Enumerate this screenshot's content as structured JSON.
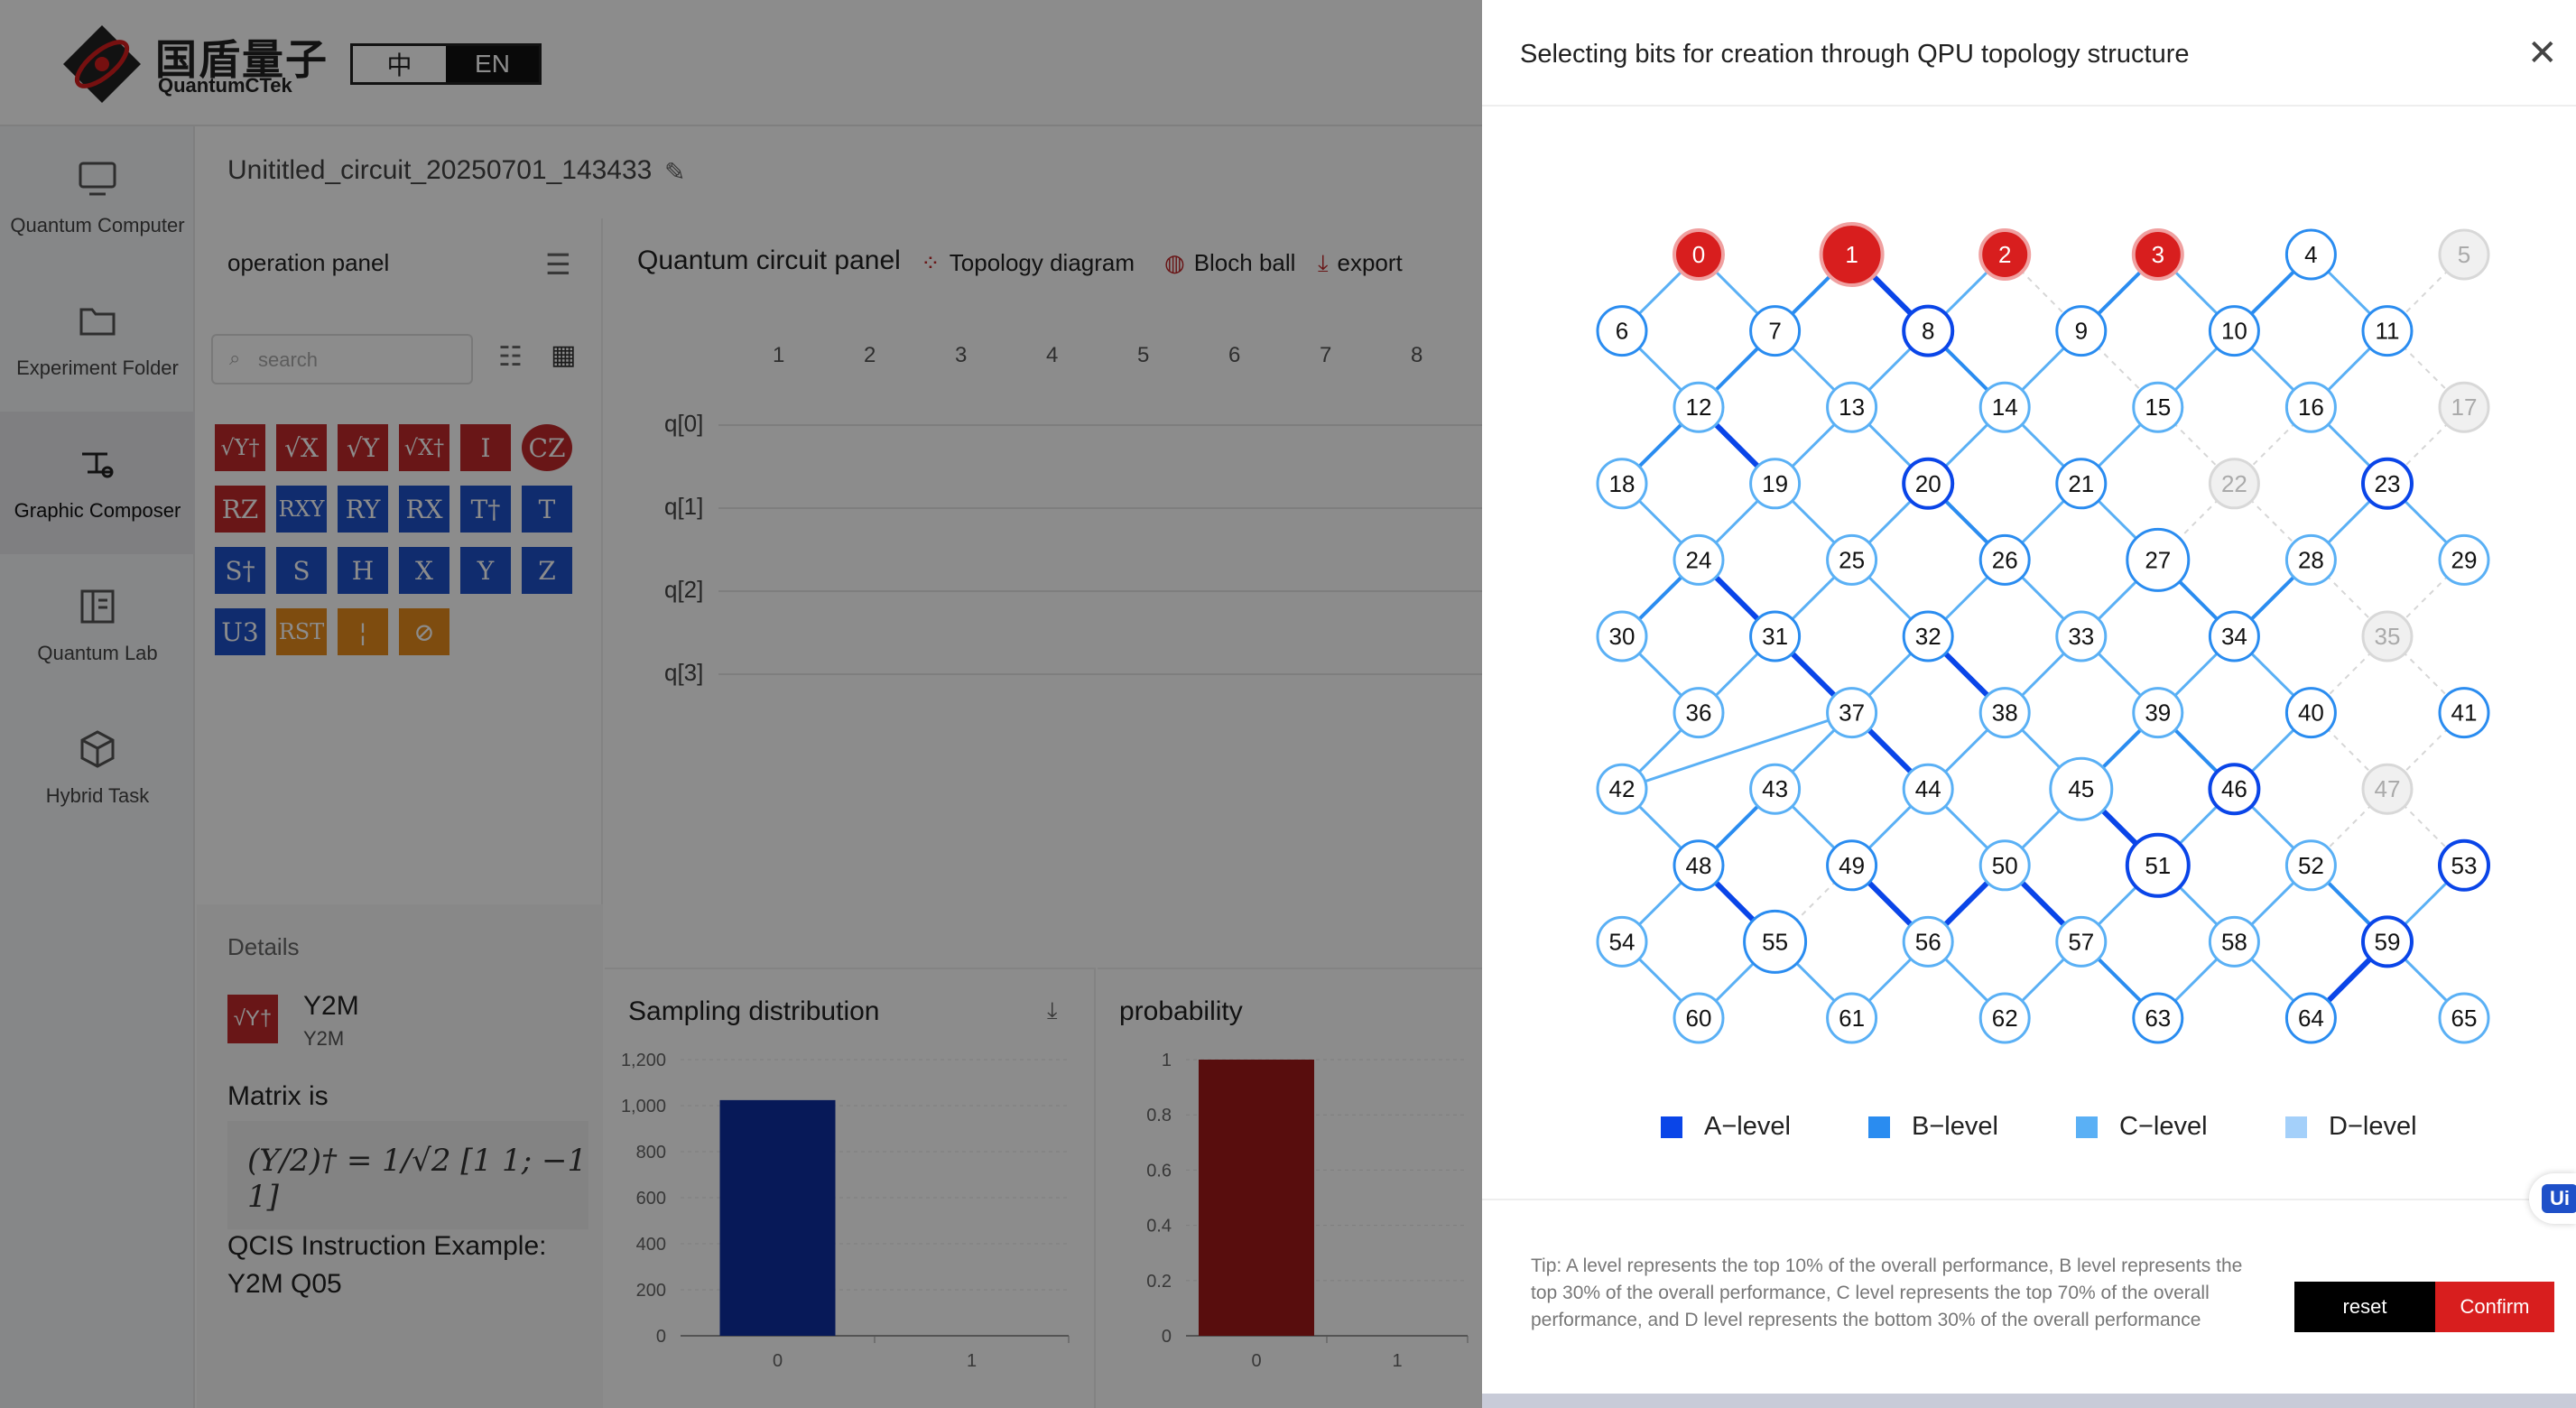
{
  "logo": {
    "cn": "国盾量子",
    "en": "QuantumCTek"
  },
  "lang": {
    "cn": "中",
    "en": "EN"
  },
  "sidebar": [
    {
      "label": "Quantum Computer",
      "icon": "monitor-icon"
    },
    {
      "label": "Experiment Folder",
      "icon": "folder-icon"
    },
    {
      "label": "Graphic Composer",
      "icon": "composer-icon",
      "active": true
    },
    {
      "label": "Quantum Lab",
      "icon": "book-icon"
    },
    {
      "label": "Hybrid Task",
      "icon": "cube-icon"
    }
  ],
  "file_title": "Unititled_circuit_20250701_143433",
  "operation_panel": {
    "title": "operation panel",
    "search_placeholder": "search",
    "gates": [
      {
        "label": "√Y†",
        "color": "red"
      },
      {
        "label": "√X",
        "color": "red"
      },
      {
        "label": "√Y",
        "color": "red"
      },
      {
        "label": "√X†",
        "color": "red"
      },
      {
        "label": "I",
        "color": "red"
      },
      {
        "label": "CZ",
        "color": "red",
        "shape": "circle"
      },
      {
        "label": "RZ",
        "color": "red"
      },
      {
        "label": "RXY",
        "color": "blue"
      },
      {
        "label": "RY",
        "color": "blue"
      },
      {
        "label": "RX",
        "color": "blue"
      },
      {
        "label": "T†",
        "color": "blue"
      },
      {
        "label": "T",
        "color": "blue"
      },
      {
        "label": "S†",
        "color": "blue"
      },
      {
        "label": "S",
        "color": "blue"
      },
      {
        "label": "H",
        "color": "blue"
      },
      {
        "label": "X",
        "color": "blue"
      },
      {
        "label": "Y",
        "color": "blue"
      },
      {
        "label": "Z",
        "color": "blue"
      },
      {
        "label": "U3",
        "color": "blue"
      },
      {
        "label": "RST",
        "color": "orange"
      },
      {
        "label": "¦",
        "color": "orange"
      },
      {
        "label": "⊘",
        "color": "orange"
      }
    ]
  },
  "details": {
    "label": "Details",
    "gate_icon": "√Y†",
    "name": "Y2M",
    "sub": "Y2M",
    "matrix_label": "Matrix is",
    "matrix_formula": "(Y/2)† = 1/√2 [1 1; −1 1]",
    "qcis_label": "QCIS Instruction Example:",
    "qcis_value": "Y2M Q05"
  },
  "circuit_panel": {
    "title": "Quantum circuit panel",
    "links": [
      "Topology diagram",
      "Bloch ball",
      "export"
    ],
    "columns": [
      "1",
      "2",
      "3",
      "4",
      "5",
      "6",
      "7",
      "8"
    ],
    "qubits": [
      "q[0]",
      "q[1]",
      "q[2]",
      "q[3]"
    ]
  },
  "sampling": {
    "title": "Sampling distribution",
    "chart_data": {
      "type": "bar",
      "categories": [
        "0",
        "1"
      ],
      "values": [
        1024,
        0
      ],
      "ylim": [
        0,
        1200
      ],
      "yticks": [
        "0",
        "200",
        "400",
        "600",
        "800",
        "1,000",
        "1,200"
      ],
      "color": "#0d2fa0"
    }
  },
  "probability": {
    "title": "probability",
    "chart_data": {
      "type": "bar",
      "categories": [
        "0",
        "1"
      ],
      "values": [
        1,
        0
      ],
      "ylim": [
        0,
        1
      ],
      "yticks": [
        "0",
        "0.2",
        "0.4",
        "0.6",
        "0.8",
        "1"
      ],
      "color": "#a01818"
    }
  },
  "drawer": {
    "title": "Selecting bits for creation through QPU topology structure",
    "selected_color": "#d81e1e",
    "legend": [
      {
        "label": "A−level",
        "color": "#0a45e8"
      },
      {
        "label": "B−level",
        "color": "#2a8cf0"
      },
      {
        "label": "C−level",
        "color": "#5ab0f5"
      },
      {
        "label": "D−level",
        "color": "#a4d0fa"
      }
    ],
    "tip": "Tip: A level represents the top 10% of the overall performance, B level represents the top 30% of the overall performance, C level represents the top 70% of the overall performance, and D level represents the bottom 30% of the overall performance",
    "reset_label": "reset",
    "confirm_label": "Confirm",
    "side_badge": "Ui"
  },
  "topology": {
    "selected": [
      0,
      1,
      2,
      3
    ],
    "unavailable": [
      5,
      17,
      22,
      35,
      47
    ],
    "large": [
      1,
      27,
      45,
      51,
      55
    ],
    "node_levels": {
      "0": "A",
      "1": "A",
      "2": "A",
      "3": "A",
      "4": "B",
      "5": "X",
      "6": "B",
      "7": "B",
      "8": "A",
      "9": "B",
      "10": "B",
      "11": "B",
      "12": "C",
      "13": "C",
      "14": "C",
      "15": "C",
      "16": "C",
      "17": "X",
      "18": "C",
      "19": "C",
      "20": "A",
      "21": "B",
      "22": "X",
      "23": "A",
      "24": "C",
      "25": "C",
      "26": "B",
      "27": "B",
      "28": "C",
      "29": "C",
      "30": "C",
      "31": "B",
      "32": "B",
      "33": "C",
      "34": "B",
      "35": "X",
      "36": "C",
      "37": "C",
      "38": "C",
      "39": "C",
      "40": "B",
      "41": "B",
      "42": "C",
      "43": "C",
      "44": "C",
      "45": "C",
      "46": "A",
      "47": "X",
      "48": "B",
      "49": "B",
      "50": "C",
      "51": "A",
      "52": "C",
      "53": "A",
      "54": "C",
      "55": "B",
      "56": "C",
      "57": "C",
      "58": "C",
      "59": "A",
      "60": "C",
      "61": "C",
      "62": "C",
      "63": "B",
      "64": "B",
      "65": "C"
    },
    "edge_levels": {
      "0-6": "C",
      "0-7": "C",
      "1-7": "B",
      "1-8": "A",
      "2-8": "C",
      "2-9": "X",
      "3-9": "B",
      "3-10": "C",
      "4-10": "B",
      "4-11": "C",
      "5-11": "X",
      "6-12": "C",
      "7-12": "B",
      "7-13": "C",
      "8-13": "C",
      "8-14": "B",
      "9-14": "C",
      "9-15": "X",
      "10-15": "C",
      "10-16": "C",
      "11-16": "C",
      "11-17": "X",
      "12-18": "B",
      "12-19": "A",
      "13-19": "C",
      "13-20": "C",
      "14-20": "C",
      "14-21": "C",
      "15-21": "C",
      "15-22": "X",
      "16-22": "X",
      "16-23": "C",
      "17-23": "X",
      "18-24": "C",
      "19-24": "C",
      "19-25": "C",
      "20-25": "C",
      "20-26": "B",
      "21-26": "C",
      "21-27": "C",
      "22-27": "X",
      "22-28": "X",
      "23-28": "C",
      "23-29": "C",
      "24-30": "B",
      "24-31": "A",
      "25-31": "C",
      "25-32": "C",
      "26-32": "C",
      "26-33": "C",
      "27-33": "C",
      "27-34": "B",
      "28-34": "B",
      "28-35": "X",
      "29-35": "X",
      "30-36": "C",
      "31-36": "C",
      "31-37": "A",
      "32-37": "C",
      "32-38": "A",
      "33-38": "C",
      "33-39": "C",
      "34-39": "C",
      "34-40": "C",
      "35-40": "X",
      "35-41": "X",
      "36-42": "C",
      "37-42": "C",
      "37-43": "C",
      "37-44": "A",
      "38-44": "C",
      "38-45": "C",
      "39-45": "B",
      "39-46": "B",
      "40-46": "C",
      "40-47": "X",
      "41-47": "X",
      "42-48": "C",
      "43-48": "B",
      "43-49": "C",
      "44-49": "C",
      "44-50": "C",
      "45-50": "C",
      "45-51": "A",
      "46-51": "C",
      "46-52": "C",
      "47-52": "X",
      "47-53": "X",
      "48-54": "C",
      "48-55": "A",
      "49-55": "X",
      "49-56": "A",
      "50-56": "A",
      "50-57": "A",
      "51-57": "C",
      "51-58": "C",
      "52-58": "C",
      "52-59": "B",
      "53-59": "C",
      "54-60": "C",
      "55-60": "C",
      "55-61": "C",
      "56-61": "C",
      "56-62": "C",
      "57-62": "C",
      "57-63": "B",
      "58-63": "C",
      "58-64": "C",
      "59-64": "A",
      "59-65": "C"
    }
  }
}
